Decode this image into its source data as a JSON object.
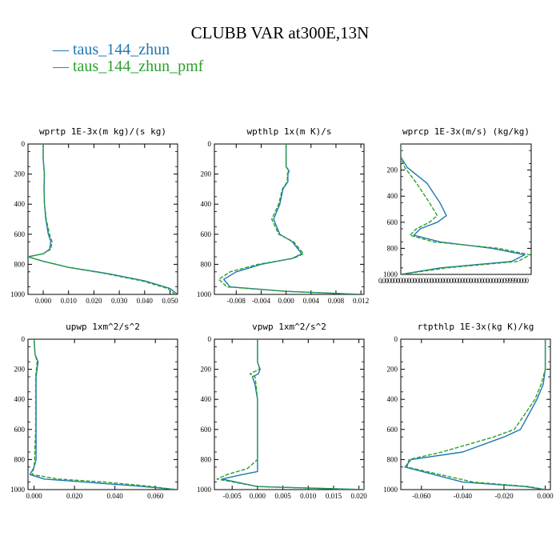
{
  "title": "CLUBB VAR at300E,13N",
  "legend": [
    {
      "label": "— taus_144_zhun",
      "color": "#1f77b4"
    },
    {
      "label": "— taus_144_zhun_pmf",
      "color": "#2ca02c"
    }
  ],
  "colors": {
    "series1": "#1f77b4",
    "series2": "#2ca02c",
    "axis": "#000000"
  },
  "chart_data": [
    {
      "type": "line",
      "title": "wprtp  1E-3x(m kg)/(s kg)",
      "xlim": [
        -0.006,
        0.053
      ],
      "ylim": [
        1000,
        0
      ],
      "yticks": [
        0,
        200,
        400,
        600,
        800,
        1000
      ],
      "xticks": [
        {
          "v": 0,
          "l": "0.000"
        },
        {
          "v": 0.01,
          "l": "0.010"
        },
        {
          "v": 0.02,
          "l": "0.020"
        },
        {
          "v": 0.03,
          "l": "0.030"
        },
        {
          "v": 0.04,
          "l": "0.040"
        },
        {
          "v": 0.05,
          "l": "0.050"
        }
      ],
      "series": [
        {
          "name": "taus_144_zhun",
          "x": [
            0.0,
            0.0,
            0.0005,
            0.0003,
            0.0005,
            0.001,
            0.002,
            0.003,
            0.0025,
            0.0,
            -0.006,
            0.0,
            0.01,
            0.025,
            0.04,
            0.05,
            0.053
          ],
          "y": [
            0,
            100,
            200,
            300,
            400,
            500,
            600,
            650,
            700,
            730,
            750,
            780,
            820,
            860,
            910,
            960,
            1000
          ]
        },
        {
          "name": "taus_144_zhun_pmf",
          "x": [
            0.0,
            0.0,
            0.0004,
            0.0003,
            0.0005,
            0.0012,
            0.0025,
            0.0035,
            0.003,
            0.0,
            -0.006,
            0.0,
            0.01,
            0.024,
            0.039,
            0.049,
            0.052
          ],
          "y": [
            0,
            100,
            200,
            300,
            400,
            500,
            600,
            650,
            700,
            730,
            750,
            780,
            820,
            860,
            910,
            960,
            1000
          ]
        }
      ]
    },
    {
      "type": "line",
      "title": "wpthlp  1x(m K)/s",
      "xlim": [
        -0.0115,
        0.0125
      ],
      "ylim": [
        1000,
        0
      ],
      "yticks": [
        0,
        200,
        400,
        600,
        800,
        1000
      ],
      "xticks": [
        {
          "v": -0.008,
          "l": "-0.008"
        },
        {
          "v": -0.004,
          "l": "-0.004"
        },
        {
          "v": 0,
          "l": "0.000"
        },
        {
          "v": 0.004,
          "l": "0.004"
        },
        {
          "v": 0.008,
          "l": "0.008"
        },
        {
          "v": 0.012,
          "l": "0.012"
        }
      ],
      "series": [
        {
          "name": "taus_144_zhun",
          "x": [
            0,
            0,
            0.0005,
            0.0003,
            0.0003,
            -0.0005,
            -0.001,
            -0.002,
            -0.001,
            0.001,
            0.0025,
            0.001,
            -0.004,
            -0.008,
            -0.01,
            -0.009,
            0,
            0.012
          ],
          "y": [
            0,
            150,
            180,
            200,
            250,
            300,
            400,
            500,
            600,
            650,
            730,
            760,
            800,
            850,
            900,
            950,
            980,
            1000
          ]
        },
        {
          "name": "taus_144_zhun_pmf",
          "x": [
            0,
            0,
            0.0004,
            0.0002,
            0.0002,
            -0.0006,
            -0.0012,
            -0.0023,
            -0.0012,
            0.0012,
            0.0028,
            0.0012,
            -0.0045,
            -0.009,
            -0.0108,
            -0.0095,
            0,
            0.012
          ],
          "y": [
            0,
            150,
            180,
            200,
            250,
            300,
            400,
            500,
            600,
            650,
            730,
            760,
            800,
            850,
            900,
            950,
            980,
            1000
          ]
        }
      ]
    },
    {
      "type": "line",
      "title": "wprcp  1E-3x(m/s) (kg/kg)",
      "xlim": [
        0,
        1.0
      ],
      "ylim": [
        1000,
        0
      ],
      "yticks": [
        200,
        400,
        600,
        800,
        1000
      ],
      "xticks": [
        {
          "v": 0,
          "l": "0.0000000000000000000000000000000000000000000099990000"
        }
      ],
      "series": [
        {
          "name": "taus_144_zhun",
          "x": [
            0,
            0,
            0.05,
            0.2,
            0.3,
            0.35,
            0.28,
            0.15,
            0.1,
            0.3,
            0.7,
            0.95,
            0.85,
            0.3,
            0
          ],
          "y": [
            0,
            100,
            180,
            300,
            450,
            550,
            600,
            650,
            700,
            750,
            800,
            850,
            900,
            950,
            1000
          ]
        },
        {
          "name": "taus_144_zhun_pmf",
          "x": [
            0,
            0,
            0.03,
            0.12,
            0.22,
            0.28,
            0.22,
            0.12,
            0.07,
            0.25,
            0.75,
            0.99,
            0.9,
            0.35,
            0
          ],
          "y": [
            0,
            100,
            180,
            300,
            450,
            550,
            600,
            650,
            700,
            750,
            800,
            850,
            900,
            950,
            1000
          ]
        }
      ]
    },
    {
      "type": "line",
      "title": "upwp  1xm^2/s^2",
      "xlim": [
        -0.003,
        0.071
      ],
      "ylim": [
        1000,
        0
      ],
      "yticks": [
        0,
        200,
        400,
        600,
        800,
        1000
      ],
      "xticks": [
        {
          "v": 0,
          "l": "0.000"
        },
        {
          "v": 0.02,
          "l": "0.020"
        },
        {
          "v": 0.04,
          "l": "0.040"
        },
        {
          "v": 0.06,
          "l": "0.060"
        }
      ],
      "series": [
        {
          "name": "taus_144_zhun",
          "x": [
            0,
            0.0005,
            0.002,
            0.001,
            0.001,
            0.001,
            0.001,
            0.001,
            0,
            -0.002,
            0.005,
            0.025,
            0.05,
            0.071
          ],
          "y": [
            0,
            100,
            150,
            250,
            400,
            600,
            700,
            800,
            850,
            900,
            930,
            950,
            975,
            1000
          ]
        },
        {
          "name": "taus_144_zhun_pmf",
          "x": [
            0,
            0.0005,
            0.0015,
            0.0008,
            0.0008,
            0.0008,
            0.0005,
            0.0003,
            0,
            -0.001,
            0.012,
            0.035,
            0.055,
            0.07
          ],
          "y": [
            0,
            100,
            150,
            250,
            400,
            600,
            700,
            800,
            850,
            900,
            930,
            950,
            975,
            1000
          ]
        }
      ]
    },
    {
      "type": "line",
      "title": "vpwp  1xm^2/s^2",
      "xlim": [
        -0.0085,
        0.021
      ],
      "ylim": [
        1000,
        0
      ],
      "yticks": [
        0,
        200,
        400,
        600,
        800,
        1000
      ],
      "xticks": [
        {
          "v": -0.005,
          "l": "-0.005"
        },
        {
          "v": 0,
          "l": "0.000"
        },
        {
          "v": 0.005,
          "l": "0.005"
        },
        {
          "v": 0.01,
          "l": "0.010"
        },
        {
          "v": 0.015,
          "l": "0.015"
        },
        {
          "v": 0.02,
          "l": "0.020"
        }
      ],
      "series": [
        {
          "name": "taus_144_zhun",
          "x": [
            0,
            0,
            0.0005,
            0.0002,
            -0.001,
            -0.0005,
            0,
            0,
            0,
            0,
            -0.003,
            -0.007,
            0,
            0.021
          ],
          "y": [
            0,
            150,
            200,
            230,
            250,
            300,
            400,
            600,
            800,
            880,
            900,
            930,
            980,
            1000
          ]
        },
        {
          "name": "taus_144_zhun_pmf",
          "x": [
            0,
            0,
            0.0004,
            -0.0015,
            -0.0005,
            -0.0003,
            0,
            0,
            0,
            -0.002,
            -0.006,
            -0.008,
            0,
            0.02
          ],
          "y": [
            0,
            150,
            200,
            230,
            250,
            300,
            400,
            600,
            800,
            860,
            900,
            930,
            980,
            1000
          ]
        }
      ]
    },
    {
      "type": "line",
      "title": "rtpthlp  1E-3x(kg K)/kg",
      "xlim": [
        -0.07,
        0.0025
      ],
      "ylim": [
        1000,
        0
      ],
      "yticks": [
        0,
        200,
        400,
        600,
        800,
        1000
      ],
      "xticks": [
        {
          "v": -0.06,
          "l": "-0.060"
        },
        {
          "v": -0.04,
          "l": "-0.040"
        },
        {
          "v": -0.02,
          "l": "-0.020"
        },
        {
          "v": 0,
          "l": "0.000"
        }
      ],
      "series": [
        {
          "name": "taus_144_zhun",
          "x": [
            0,
            0,
            -0.001,
            -0.004,
            -0.008,
            -0.012,
            -0.02,
            -0.04,
            -0.065,
            -0.068,
            -0.04,
            -0.01,
            0
          ],
          "y": [
            0,
            200,
            300,
            400,
            500,
            600,
            650,
            750,
            800,
            850,
            950,
            980,
            1000
          ]
        },
        {
          "name": "taus_144_zhun_pmf",
          "x": [
            0,
            0,
            -0.002,
            -0.005,
            -0.01,
            -0.015,
            -0.025,
            -0.05,
            -0.066,
            -0.067,
            -0.035,
            -0.008,
            0
          ],
          "y": [
            0,
            200,
            300,
            400,
            500,
            600,
            650,
            750,
            800,
            850,
            950,
            980,
            1000
          ]
        }
      ]
    }
  ]
}
